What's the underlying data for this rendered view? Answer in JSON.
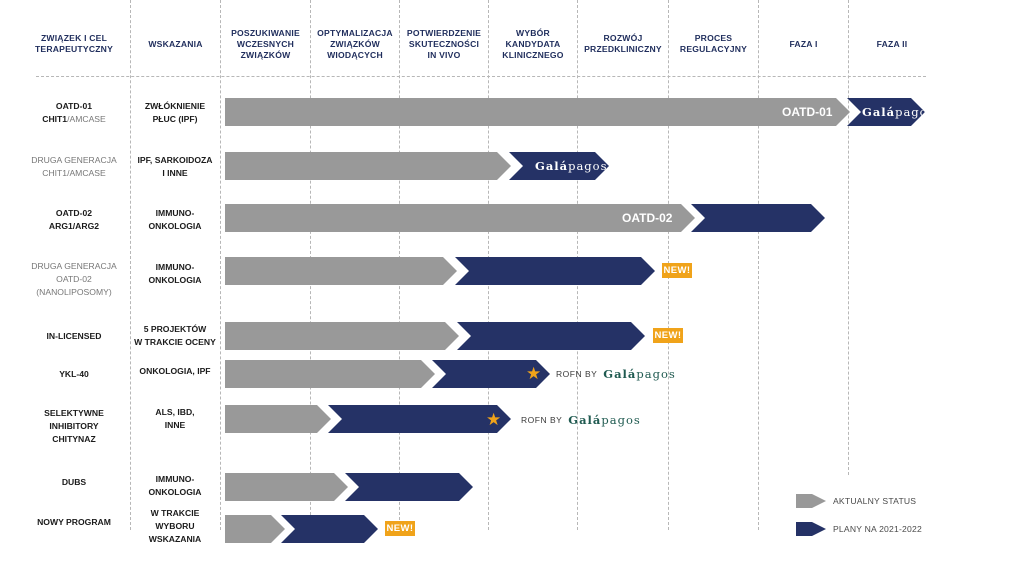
{
  "headers": [
    "ZWIĄZEK I CEL\nTERAPEUTYCZNY",
    "WSKAZANIA",
    "POSZUKIWANIE\nWCZESNYCH\nZWIĄZKÓW",
    "OPTYMALIZACJA\nZWIĄZKÓW\nWIODĄCYCH",
    "POTWIERDZENIE\nSKUTECZNOŚCI\nIN VIVO",
    "WYBÓR\nKANDYDATA\nKLINICZNEGO",
    "ROZWÓJ\nPRZEDKLINICZNY",
    "PROCES\nREGULACYJNY",
    "FAZA I",
    "FAZA II"
  ],
  "rows": [
    {
      "compound_main": "OATD-01\nCHIT1",
      "compound_dim": "/AMCASE",
      "indication": "ZWŁÓKNIENIE\nPŁUC (IPF)",
      "bar_label": "OATD-01",
      "partner_logo": "Galápagos"
    },
    {
      "compound_dim": "DRUGA GENERACJA\nCHIT1/AMCASE",
      "indication": "IPF, SARKOIDOZA\nI INNE",
      "partner_logo": "Galápagos"
    },
    {
      "compound_main": "OATD-02\nARG1/ARG2",
      "indication": "IMMUNO-\nONKOLOGIA",
      "bar_label": "OATD-02"
    },
    {
      "compound_dim": "DRUGA GENERACJA\nOATD-02\n(NANOLIPOSOMY)",
      "indication": "IMMUNO-\nONKOLOGIA",
      "badge": "NEW!"
    },
    {
      "compound_main": "IN-LICENSED",
      "indication": "5 PROJEKTÓW\nW TRAKCIE OCENY",
      "badge": "NEW!"
    },
    {
      "compound_main": "YKL-40",
      "indication": "ONKOLOGIA, IPF",
      "rofn": "ROFN BY",
      "partner_logo": "Galápagos"
    },
    {
      "compound_main": "SELEKTYWNE\nINHIBITORY\nCHITYNAZ",
      "indication": "ALS, IBD,\nINNE",
      "rofn": "ROFN BY",
      "partner_logo": "Galápagos"
    },
    {
      "compound_main": "DUBS",
      "indication": "IMMUNO-\nONKOLOGIA"
    },
    {
      "compound_main": "NOWY PROGRAM",
      "indication": "W TRAKCIE WYBORU\nWSKAZANIA",
      "badge": "NEW!"
    }
  ],
  "legend": {
    "current": "AKTUALNY STATUS",
    "plans": "PLANY NA 2021-2022"
  },
  "colors": {
    "current_status": "#999999",
    "plans": "#253266",
    "badge": "#f0a31a",
    "header_text": "#1f2d5c"
  },
  "icons": {
    "star": "star-icon"
  }
}
